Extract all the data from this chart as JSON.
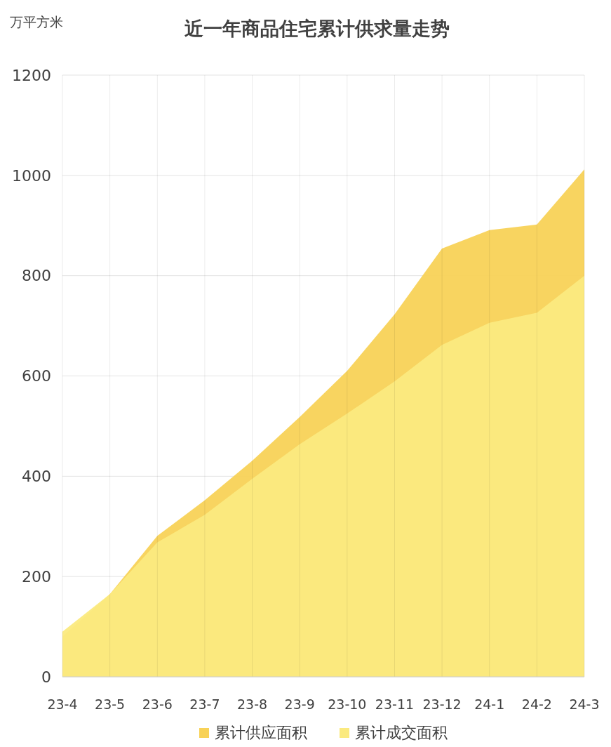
{
  "chart_data": {
    "type": "area",
    "title": "近一年商品住宅累计供求量走势",
    "ylabel": "万平方米",
    "categories": [
      "23-4",
      "23-5",
      "23-6",
      "23-7",
      "23-8",
      "23-9",
      "23-10",
      "23-11",
      "23-12",
      "24-1",
      "24-2",
      "24-3"
    ],
    "series": [
      {
        "name": "累计供应面积",
        "color": "#f8d257",
        "values": [
          80,
          165,
          281,
          352,
          431,
          518,
          610,
          723,
          854,
          891,
          902,
          1012
        ]
      },
      {
        "name": "累计成交面积",
        "color": "#fbea7f",
        "values": [
          90,
          165,
          268,
          323,
          395,
          464,
          525,
          589,
          662,
          706,
          726,
          800
        ]
      }
    ],
    "ylim": [
      0,
      1200
    ],
    "yticks": [
      0,
      200,
      400,
      600,
      800,
      1000,
      1200
    ],
    "grid": true,
    "legend": "bottom"
  }
}
